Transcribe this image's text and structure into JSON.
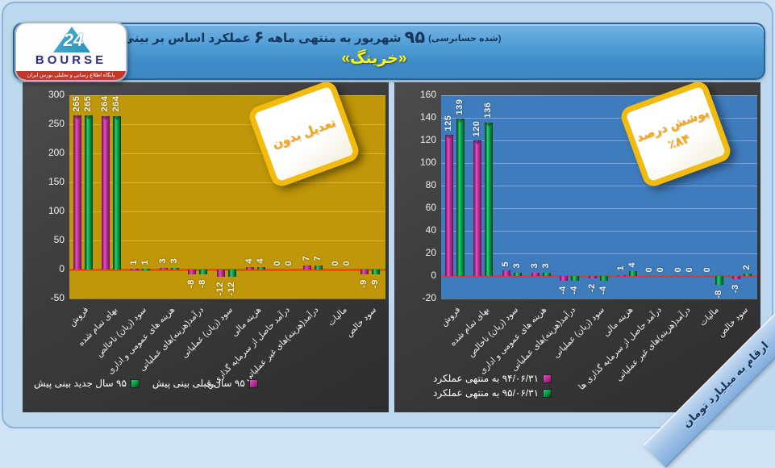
{
  "header": {
    "title": {
      "p1": "پیش بینی بر اساس عملکرد",
      "d1": "۶",
      "p2": "ماهه منتهی به شهریور",
      "d2": "۹۵",
      "note": "(حسابرسی شده)"
    },
    "company": "«خرینگ»"
  },
  "logo": {
    "brand": "BOURSE",
    "mark": "24",
    "tagline": "پایگاه اطلاع رسانی و تحلیلی بورس ایران"
  },
  "ribbon": {
    "text": "ارقام به میلیارد تومان"
  },
  "colors": {
    "page_bg": "#bdd7ee",
    "header_blue": "#3f8cc9",
    "panel_dark": "#3b3b3b",
    "gold_plot": "#C09708",
    "steel_blue_plot": "#3F7CBE",
    "magenta_series": "#C0309C",
    "green_series": "#00A24E",
    "note_border_yellow": "#F3BC0C",
    "title_navy": "#17365D",
    "company_yellow": "#FFFF00"
  },
  "chart_data": [
    {
      "type": "bar",
      "note_lines": [
        "بدون تعدیل"
      ],
      "ylim": [
        -50,
        300
      ],
      "ystep": 50,
      "yticks": [
        300,
        250,
        200,
        150,
        100,
        50,
        0,
        -50
      ],
      "grid": true,
      "legend_layout": "row",
      "plot_bg": "#C09708",
      "grid_color": "rgba(255,225,120,0.35)",
      "zero_color": "#E65300",
      "categories": [
        "فروش",
        "بهای تمام شده",
        "سود (زیان) ناخالص",
        "هزینه های عمومی و اداری",
        "درآمد(هزینه)های عملیاتی",
        "سود (زیان) عملیاتی",
        "هزینه مالی",
        "درآمد حاصل از سرمایه گذاری ها",
        "درآمد(هزینه)های غیر عملیاتی",
        "مالیات",
        "سود خالص"
      ],
      "series": [
        {
          "name": "پیش بینی قبلی سال ۹۵",
          "marker": "magenta",
          "color": "#C0309C",
          "values": [
            265,
            264,
            1,
            3,
            -8,
            -12,
            4,
            0,
            7,
            0,
            -9
          ]
        },
        {
          "name": "پیش بینی جدید سال ۹۵",
          "marker": "green",
          "color": "#00A24E",
          "values": [
            265,
            264,
            1,
            3,
            -8,
            -12,
            4,
            0,
            7,
            0,
            -9
          ]
        }
      ]
    },
    {
      "type": "bar",
      "note_lines": [
        "درصد پوشش",
        "٪۸۴"
      ],
      "ylim": [
        -20,
        160
      ],
      "ystep": 20,
      "yticks": [
        160,
        140,
        120,
        100,
        80,
        60,
        40,
        20,
        0,
        -20
      ],
      "grid": true,
      "legend_layout": "column",
      "plot_bg": "#3F7CBE",
      "grid_color": "rgba(255,255,255,0.30)",
      "zero_color": "#D03A52",
      "categories": [
        "فروش",
        "بهای تمام شده",
        "سود (زیان) ناخالص",
        "هزینه های عمومی و اداری",
        "درآمد(هزینه)های عملیاتی",
        "سود (زیان) عملیاتی",
        "هزینه مالی",
        "درآمد حاصل از سرمایه گذاری ها",
        "درآمد(هزینه)های غیر عملیاتی",
        "مالیات",
        "سود خالص"
      ],
      "series": [
        {
          "name": "عملکرد منتهی به ۹۴/۰۶/۳۱",
          "marker": "magenta",
          "color": "#C0309C",
          "values": [
            125,
            120,
            5,
            3,
            -4,
            -2,
            1,
            0,
            0,
            0,
            -3
          ]
        },
        {
          "name": "عملکرد منتهی به ۹۵/۰۶/۳۱",
          "marker": "green",
          "color": "#00A24E",
          "values": [
            139,
            136,
            3,
            3,
            -4,
            -4,
            4,
            0,
            0,
            -8,
            2
          ]
        }
      ]
    }
  ]
}
